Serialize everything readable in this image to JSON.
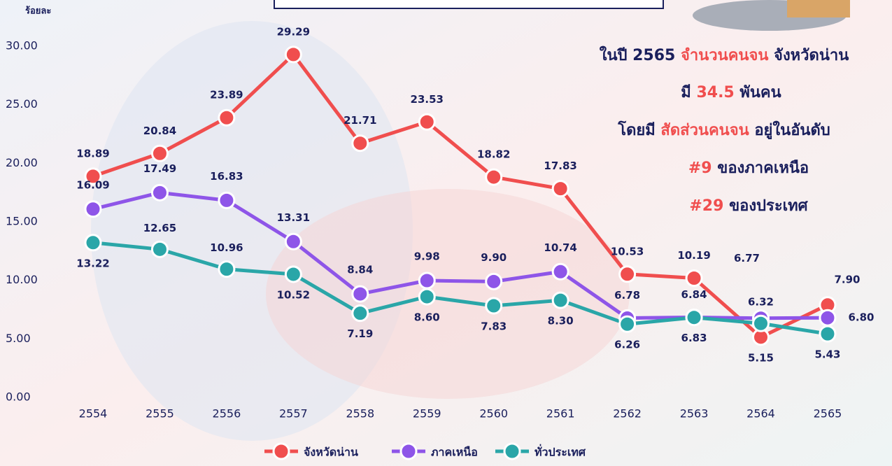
{
  "chart_data": {
    "type": "line",
    "y_label": "ร้อยละ",
    "categories": [
      "2554",
      "2555",
      "2556",
      "2557",
      "2558",
      "2559",
      "2560",
      "2561",
      "2562",
      "2563",
      "2564",
      "2565"
    ],
    "series": [
      {
        "name": "จังหวัดน่าน",
        "color": "#f04e4e",
        "values": [
          18.89,
          20.84,
          23.89,
          29.29,
          21.71,
          23.53,
          18.82,
          17.83,
          10.53,
          10.19,
          5.15,
          7.9
        ],
        "value_labels": [
          "18.89",
          "20.84",
          "23.89",
          "29.29",
          "21.71",
          "23.53",
          "18.82",
          "17.83",
          "10.53",
          "10.19",
          "5.15",
          "7.90"
        ]
      },
      {
        "name": "ภาคเหนือ",
        "color": "#8e55e8",
        "values": [
          16.09,
          17.49,
          16.83,
          13.31,
          8.84,
          9.98,
          9.9,
          10.74,
          6.78,
          6.84,
          6.77,
          6.8
        ],
        "value_labels": [
          "16.09",
          "17.49",
          "16.83",
          "13.31",
          "8.84",
          "9.98",
          "9.90",
          "10.74",
          "6.78",
          "6.84",
          "6.77",
          "6.80"
        ]
      },
      {
        "name": "ทั่วประเทศ",
        "color": "#2aa6a8",
        "values": [
          13.22,
          12.65,
          10.96,
          10.52,
          7.19,
          8.6,
          7.83,
          8.3,
          6.26,
          6.83,
          6.32,
          5.43
        ],
        "value_labels": [
          "13.22",
          "12.65",
          "10.96",
          "10.52",
          "7.19",
          "8.60",
          "7.83",
          "8.30",
          "6.26",
          "6.83",
          "6.32",
          "5.43"
        ]
      }
    ],
    "ylim": [
      0,
      30
    ],
    "yticks": [
      {
        "value": 0,
        "label": "0.00"
      },
      {
        "value": 5,
        "label": "5.00"
      },
      {
        "value": 10,
        "label": "10.00"
      },
      {
        "value": 15,
        "label": "15.00"
      },
      {
        "value": 20,
        "label": "20.00"
      },
      {
        "value": 25,
        "label": "25.00"
      },
      {
        "value": 30,
        "label": "30.00"
      }
    ],
    "grid": false,
    "legend": "bottom",
    "annotations": [
      [
        {
          "text": "ในปี 2565 ",
          "color": "#1a1f5c"
        },
        {
          "text": "จำนวนคนจน",
          "color": "#f04e4e"
        },
        {
          "text": " จังหวัดน่าน",
          "color": "#1a1f5c"
        }
      ],
      [
        {
          "text": "มี ",
          "color": "#1a1f5c"
        },
        {
          "text": "34.5",
          "color": "#f04e4e"
        },
        {
          "text": " พันคน",
          "color": "#1a1f5c"
        }
      ],
      [
        {
          "text": "โดยมี ",
          "color": "#1a1f5c"
        },
        {
          "text": "สัดส่วนคนจน",
          "color": "#f04e4e"
        },
        {
          "text": " อยู่ในอันดับ",
          "color": "#1a1f5c"
        }
      ],
      [
        {
          "text": "#9",
          "color": "#f04e4e"
        },
        {
          "text": " ของภาคเหนือ",
          "color": "#1a1f5c"
        }
      ],
      [
        {
          "text": "#29",
          "color": "#f04e4e"
        },
        {
          "text": " ของประเทศ",
          "color": "#1a1f5c"
        }
      ]
    ]
  }
}
